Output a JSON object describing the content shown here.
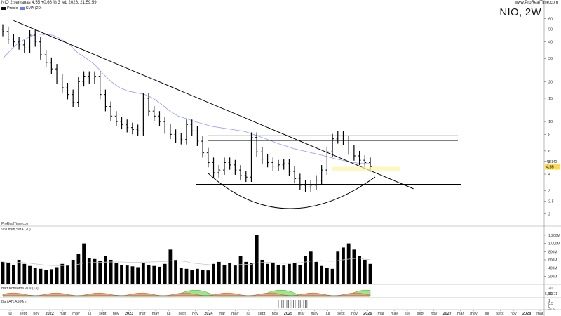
{
  "header": {
    "left_text": "NIO 2 semanas 4,55 +0,66 % 3 feb 2026, 21:59:59",
    "right_text": "www.ProRealTime.com"
  },
  "title": "NIO, 2W",
  "legend": {
    "series1": "Precio",
    "series2": "SMA (20)"
  },
  "watermark": "ProRealTime.com",
  "last_price_label": "4,55",
  "last_sma_label": "4,8140",
  "volume_panel": {
    "label": "Volumen",
    "sma_label": "SMA (20)"
  },
  "panel3": {
    "label": "Bart Konsorda v.09 (13)",
    "value_label": "5,36371"
  },
  "panel4": {
    "label": "Bart ATLAS Mm"
  },
  "chart_data": {
    "type": "candlestick",
    "title": "NIO, 2W",
    "price_axis": {
      "scale": "log",
      "ticks": [
        "60",
        "50",
        "40",
        "30",
        "20",
        "15",
        "10",
        "8",
        "6",
        "5",
        "4",
        "3",
        "2.5",
        "2"
      ],
      "range": [
        1.7,
        65
      ]
    },
    "x_labels": [
      "jul",
      "sept",
      "nov",
      "2022",
      "mar",
      "may",
      "jul",
      "sept",
      "nov",
      "2023",
      "mar",
      "may",
      "jul",
      "sept",
      "nov",
      "2024",
      "mar",
      "may",
      "jul",
      "sept",
      "nov",
      "2025",
      "mar",
      "may",
      "jul",
      "sept",
      "nov",
      "2026",
      "mar",
      "may",
      "jul",
      "sept",
      "nov",
      "2027",
      "mar",
      "may",
      "jul",
      "sept",
      "nov",
      "2028",
      "mar"
    ],
    "volume_ticks": [
      "1.200M",
      "1.000M",
      "800M",
      "600M",
      "400M",
      "200M"
    ],
    "volume_max_millions": 1250,
    "panel3_ticks": [
      "20",
      "10"
    ],
    "panel4_ticks": [
      "1",
      "0.5",
      "0",
      "-0.5"
    ],
    "price_closes": [
      48,
      42,
      40,
      38,
      36,
      45,
      40,
      32,
      28,
      25,
      21,
      18,
      16,
      14,
      20,
      22,
      21,
      22,
      16,
      13,
      11,
      10,
      9.5,
      9,
      8.7,
      8.5,
      15,
      12,
      11,
      10,
      8.8,
      8,
      7.5,
      7.3,
      9.5,
      8.5,
      7.1,
      5.8,
      4.9,
      4.1,
      4.3,
      4.9,
      4.7,
      4.3,
      3.9,
      3.8,
      7.6,
      5.9,
      5.2,
      4.9,
      4.6,
      4.7,
      4.8,
      4.2,
      3.7,
      3.3,
      3.2,
      3.3,
      3.6,
      4.3,
      5.9,
      7.4,
      7.8,
      7.2,
      6.1,
      5.5,
      5.1,
      4.9,
      4.55
    ],
    "sma20_values": [
      30,
      35,
      40,
      43,
      46,
      45.5,
      45,
      42,
      38,
      33,
      30,
      27,
      23,
      20,
      18,
      17,
      16.5,
      16,
      15,
      13.5,
      12,
      11,
      10.5,
      10,
      9.6,
      9.2,
      9,
      8.8,
      8.6,
      8.4,
      8,
      7.6,
      7.2,
      6.8,
      6.5,
      6.2,
      6,
      5.8,
      5.6,
      5.4,
      5.2,
      5.05,
      4.9,
      4.82,
      4.814
    ],
    "volume_millions": [
      550,
      520,
      480,
      600,
      500,
      450,
      400,
      380,
      350,
      370,
      420,
      500,
      480,
      600,
      750,
      1000,
      650,
      620,
      580,
      700,
      600,
      520,
      480,
      460,
      440,
      420,
      520,
      480,
      450,
      430,
      500,
      850,
      600,
      400,
      380,
      350,
      380,
      360,
      340,
      500,
      550,
      480,
      520,
      460,
      700,
      550,
      520,
      1200,
      600,
      500,
      540,
      480,
      460,
      500,
      520,
      480,
      700,
      800,
      550,
      450,
      400,
      380,
      800,
      900,
      1000,
      850,
      700,
      600,
      500
    ],
    "resistance_levels": [
      7.8,
      7.2
    ],
    "support_level": 3.35,
    "highlight_band": [
      4.2,
      4.55
    ]
  }
}
